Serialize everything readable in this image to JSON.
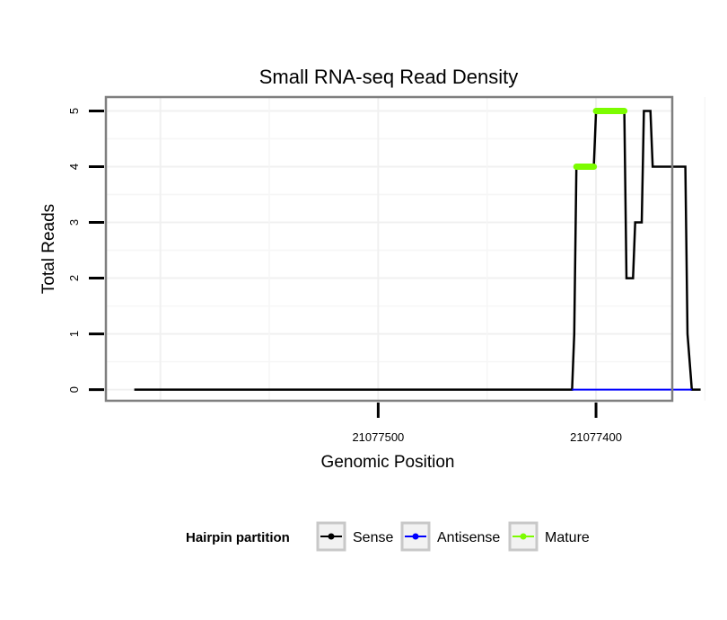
{
  "chart_data": {
    "type": "line",
    "title": "Small RNA-seq Read Density",
    "xlabel": "Genomic Position",
    "ylabel": "Total Reads",
    "xlim": [
      21077625,
      21077365
    ],
    "ylim": [
      -0.2,
      5.25
    ],
    "x_reversed": true,
    "x_ticks": [
      21077500,
      21077400
    ],
    "x_tick_labels": [
      "21077500",
      "21077400"
    ],
    "y_ticks": [
      0,
      1,
      2,
      3,
      4,
      5
    ],
    "y_tick_labels": [
      "0",
      "1",
      "2",
      "3",
      "4",
      "5"
    ],
    "grid": true,
    "legend_position": "bottom",
    "legend_title": "Hairpin partition",
    "series": [
      {
        "name": "Sense",
        "color": "#000000",
        "x": [
          21077612,
          21077411,
          21077410,
          21077409,
          21077401,
          21077400,
          21077387,
          21077386,
          21077383,
          21077382,
          21077379,
          21077378,
          21077375,
          21077374,
          21077373,
          21077359,
          21077358,
          21077356,
          21077352
        ],
        "values": [
          0,
          0,
          1,
          4,
          4,
          5,
          5,
          2,
          2,
          3,
          3,
          5,
          5,
          4,
          4,
          4,
          1,
          0,
          0
        ]
      },
      {
        "name": "Antisense",
        "color": "#0000ff",
        "x": [
          21077411,
          21077356
        ],
        "values": [
          0,
          0
        ]
      },
      {
        "name": "Mature",
        "color": "#7cfc00",
        "segments": [
          {
            "x": [
              21077409,
              21077401
            ],
            "values": [
              4,
              4
            ]
          },
          {
            "x": [
              21077400,
              21077387
            ],
            "values": [
              5,
              5
            ]
          }
        ]
      }
    ]
  }
}
